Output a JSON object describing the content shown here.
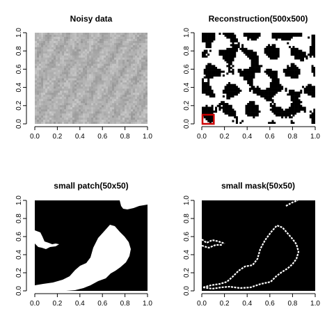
{
  "chart_data": [
    {
      "type": "heatmap",
      "id": "noisy",
      "title": "Noisy data",
      "xlim": [
        0,
        1
      ],
      "ylim": [
        0,
        1
      ],
      "x_ticks": [
        "0.0",
        "0.2",
        "0.4",
        "0.6",
        "0.8",
        "1.0"
      ],
      "y_ticks": [
        "0.0",
        "0.2",
        "0.4",
        "0.6",
        "0.8",
        "1.0"
      ],
      "colors": {
        "low": "#8a8a8a",
        "high": "#cdcdcd"
      },
      "grid": false
    },
    {
      "type": "heatmap",
      "id": "recon",
      "title": "Reconstruction(500x500)",
      "xlim": [
        0,
        1
      ],
      "ylim": [
        0,
        1
      ],
      "x_ticks": [
        "0.0",
        "0.2",
        "0.4",
        "0.6",
        "0.8",
        "1.0"
      ],
      "y_ticks": [
        "0.0",
        "0.2",
        "0.4",
        "0.6",
        "0.8",
        "1.0"
      ],
      "colors": {
        "low": "#000000",
        "high": "#ffffff"
      },
      "highlight_box": {
        "x": [
          0.0,
          0.1
        ],
        "y": [
          0.0,
          0.1
        ],
        "color": "#cc0000"
      },
      "grid": false
    },
    {
      "type": "heatmap",
      "id": "patch",
      "title": "small patch(50x50)",
      "xlim": [
        0,
        1
      ],
      "ylim": [
        0,
        1
      ],
      "x_ticks": [
        "0.0",
        "0.2",
        "0.4",
        "0.6",
        "0.8",
        "1.0"
      ],
      "y_ticks": [
        "0.0",
        "0.2",
        "0.4",
        "0.6",
        "0.8",
        "1.0"
      ],
      "colors": {
        "low": "#000000",
        "high": "#ffffff"
      },
      "grid": false
    },
    {
      "type": "heatmap",
      "id": "mask",
      "title": "small mask(50x50)",
      "xlim": [
        0,
        1
      ],
      "ylim": [
        0,
        1
      ],
      "x_ticks": [
        "0.0",
        "0.2",
        "0.4",
        "0.6",
        "0.8",
        "1.0"
      ],
      "y_ticks": [
        "0.0",
        "0.2",
        "0.4",
        "0.6",
        "0.8",
        "1.0"
      ],
      "colors": {
        "low": "#000000",
        "high": "#ffffff"
      },
      "grid": false
    }
  ]
}
